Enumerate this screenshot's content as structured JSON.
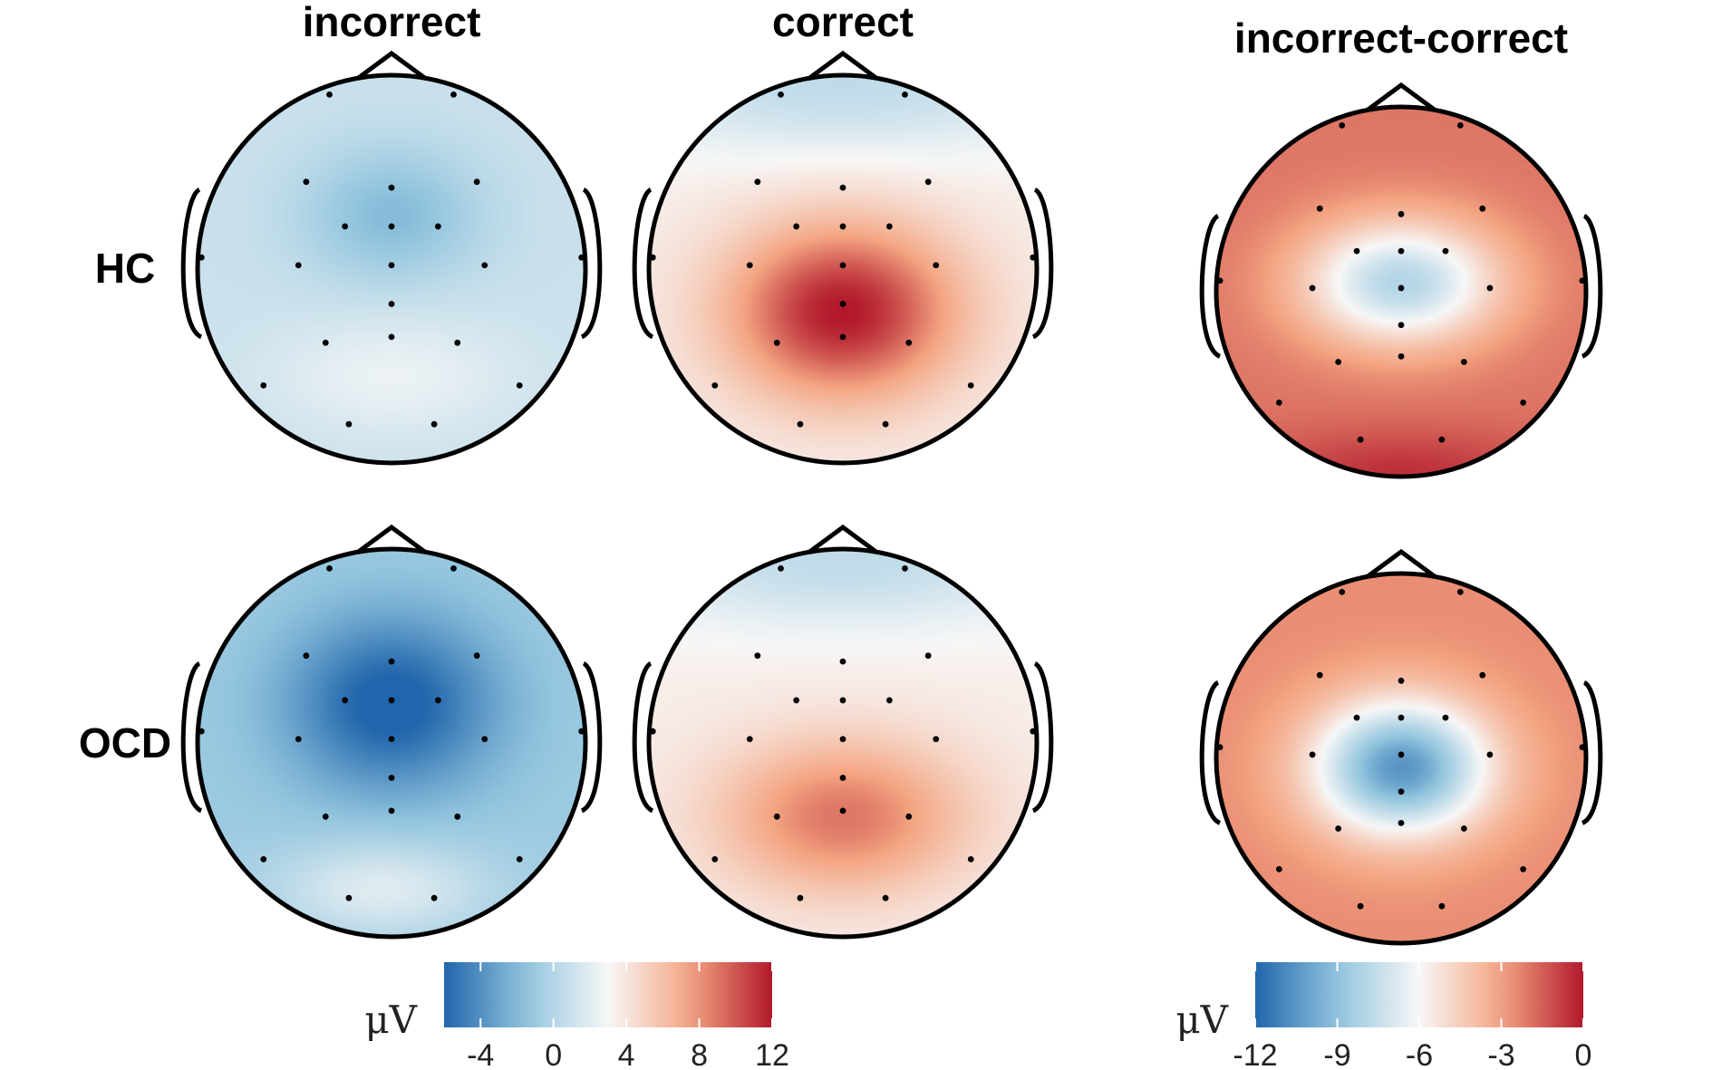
{
  "column_titles": [
    "incorrect",
    "correct",
    "incorrect-correct"
  ],
  "row_labels": [
    "HC",
    "OCD"
  ],
  "colors": {
    "negative": "#2166ac",
    "neutral": "#f7f7f7",
    "positive": "#b2182b",
    "outline": "#000000"
  },
  "colorbars": [
    {
      "name": "condition-scale",
      "unit": "μV",
      "range": [
        -6,
        12
      ],
      "ticks": [
        "-4",
        "0",
        "4",
        "8",
        "12"
      ],
      "tick_values": [
        -4,
        0,
        4,
        8,
        12
      ]
    },
    {
      "name": "difference-scale",
      "unit": "μV",
      "range": [
        -12,
        0
      ],
      "ticks": [
        "-12",
        "-9",
        "-6",
        "-3",
        "0"
      ],
      "tick_values": [
        -12,
        -9,
        -6,
        -3,
        0
      ]
    }
  ],
  "chart_data": {
    "type": "heatmap",
    "description_type": "scalp topographic maps",
    "columns": [
      "incorrect",
      "correct",
      "incorrect-correct"
    ],
    "rows": [
      "HC",
      "OCD"
    ],
    "maps": [
      {
        "row": "HC",
        "column": "incorrect",
        "scale": 0,
        "background": 1.0,
        "components": [
          {
            "value": -3.0,
            "x": 0.0,
            "y": -0.28,
            "sx": 0.32,
            "sy": 0.24
          },
          {
            "value": 1.5,
            "x": 0.0,
            "y": 0.55,
            "sx": 0.45,
            "sy": 0.22
          }
        ]
      },
      {
        "row": "HC",
        "column": "correct",
        "scale": 0,
        "background": 3.5,
        "components": [
          {
            "value": 8.5,
            "x": 0.0,
            "y": 0.22,
            "sx": 0.42,
            "sy": 0.32
          },
          {
            "value": -3.0,
            "x": 0.0,
            "y": -0.95,
            "sx": 0.9,
            "sy": 0.25
          }
        ]
      },
      {
        "row": "HC",
        "column": "incorrect-correct",
        "scale": 1,
        "background": -2.0,
        "components": [
          {
            "value": -6.0,
            "x": 0.0,
            "y": -0.05,
            "sx": 0.38,
            "sy": 0.24
          },
          {
            "value": 1.5,
            "x": 0.0,
            "y": 1.0,
            "sx": 0.6,
            "sy": 0.18
          }
        ]
      },
      {
        "row": "OCD",
        "column": "incorrect",
        "scale": 0,
        "background": -1.0,
        "components": [
          {
            "value": -5.5,
            "x": 0.0,
            "y": -0.2,
            "sx": 0.38,
            "sy": 0.32
          },
          {
            "value": 3.0,
            "x": -0.05,
            "y": 0.75,
            "sx": 0.4,
            "sy": 0.18
          }
        ]
      },
      {
        "row": "OCD",
        "column": "correct",
        "scale": 0,
        "background": 3.5,
        "components": [
          {
            "value": 5.5,
            "x": 0.0,
            "y": 0.38,
            "sx": 0.45,
            "sy": 0.28
          },
          {
            "value": -3.0,
            "x": 0.0,
            "y": -0.95,
            "sx": 0.9,
            "sy": 0.25
          }
        ]
      },
      {
        "row": "OCD",
        "column": "incorrect-correct",
        "scale": 1,
        "background": -2.5,
        "components": [
          {
            "value": -8.0,
            "x": 0.0,
            "y": 0.05,
            "sx": 0.34,
            "sy": 0.26
          }
        ]
      }
    ],
    "electrodes_per_map": 25
  }
}
